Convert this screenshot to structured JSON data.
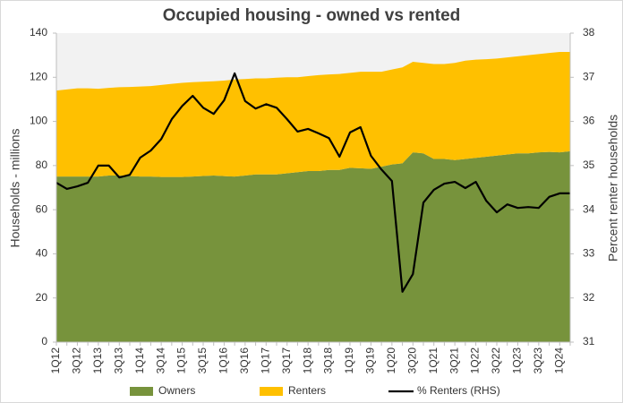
{
  "chart_data": {
    "type": "stacked-area-line",
    "title": "Occupied housing - owned vs rented",
    "y_label": "Households - millions",
    "y2_label": "Percent renter households",
    "categories": [
      "1Q12",
      null,
      "3Q12",
      null,
      "1Q13",
      null,
      "3Q13",
      null,
      "1Q14",
      null,
      "3Q14",
      null,
      "1Q15",
      null,
      "3Q15",
      null,
      "1Q16",
      null,
      "3Q16",
      null,
      "1Q17",
      null,
      "3Q17",
      null,
      "1Q18",
      null,
      "3Q18",
      null,
      "1Q19",
      null,
      "3Q19",
      null,
      "1Q20",
      null,
      "3Q20",
      null,
      "1Q21",
      null,
      "3Q21",
      null,
      "1Q22",
      null,
      "3Q22",
      null,
      "1Q23",
      null,
      "3Q23",
      null,
      "1Q24",
      null
    ],
    "series": [
      {
        "name": "Owners",
        "kind": "area",
        "color": "#77933c",
        "values": [
          75,
          75,
          75,
          75,
          75,
          75.5,
          75.5,
          75.3,
          75,
          75,
          74.8,
          74.8,
          74.8,
          75,
          75.3,
          75.5,
          75.2,
          75,
          75.5,
          76,
          76,
          76,
          76.5,
          77,
          77.5,
          77.5,
          78,
          78,
          79,
          78.8,
          78.5,
          79.5,
          80.5,
          81,
          86,
          85.5,
          83,
          83,
          82.5,
          83,
          83.5,
          84,
          84.5,
          85,
          85.5,
          85.5,
          86,
          86.2,
          86,
          86.5
        ]
      },
      {
        "name": "Renters",
        "kind": "area",
        "color": "#ffc000",
        "values": [
          39,
          39.5,
          40,
          40,
          39.8,
          39.7,
          40,
          40.3,
          40.8,
          41,
          41.7,
          42.2,
          42.7,
          42.8,
          42.7,
          42.7,
          43.3,
          44,
          43.7,
          43.5,
          43.5,
          43.8,
          43.5,
          43,
          43,
          43.5,
          43.3,
          43.5,
          43,
          43.7,
          44,
          43,
          43,
          43.5,
          41,
          41,
          43,
          43,
          44,
          44.5,
          44.5,
          44.2,
          44,
          44,
          44,
          44.5,
          44.5,
          44.8,
          45.5,
          45
        ]
      },
      {
        "name": "% Renters (RHS)",
        "kind": "line",
        "axis": "y2",
        "color": "#000000",
        "values": [
          34.61,
          34.47,
          34.53,
          34.61,
          35.0,
          35.0,
          34.73,
          34.79,
          35.18,
          35.34,
          35.6,
          36.05,
          36.35,
          36.58,
          36.31,
          36.17,
          36.48,
          37.09,
          36.46,
          36.29,
          36.39,
          36.31,
          36.05,
          35.77,
          35.83,
          35.73,
          35.62,
          35.2,
          35.75,
          35.87,
          35.22,
          34.91,
          34.65,
          32.14,
          32.54,
          34.16,
          34.45,
          34.59,
          34.63,
          34.49,
          34.63,
          34.2,
          33.94,
          34.12,
          34.04,
          34.06,
          34.04,
          34.29,
          34.37,
          34.37
        ]
      }
    ],
    "ylim": [
      0,
      140
    ],
    "yticks": [
      0,
      20,
      40,
      60,
      80,
      100,
      120,
      140
    ],
    "y2lim": [
      31,
      38
    ],
    "y2ticks": [
      31,
      32,
      33,
      34,
      35,
      36,
      37,
      38
    ],
    "legend": "bottom"
  }
}
